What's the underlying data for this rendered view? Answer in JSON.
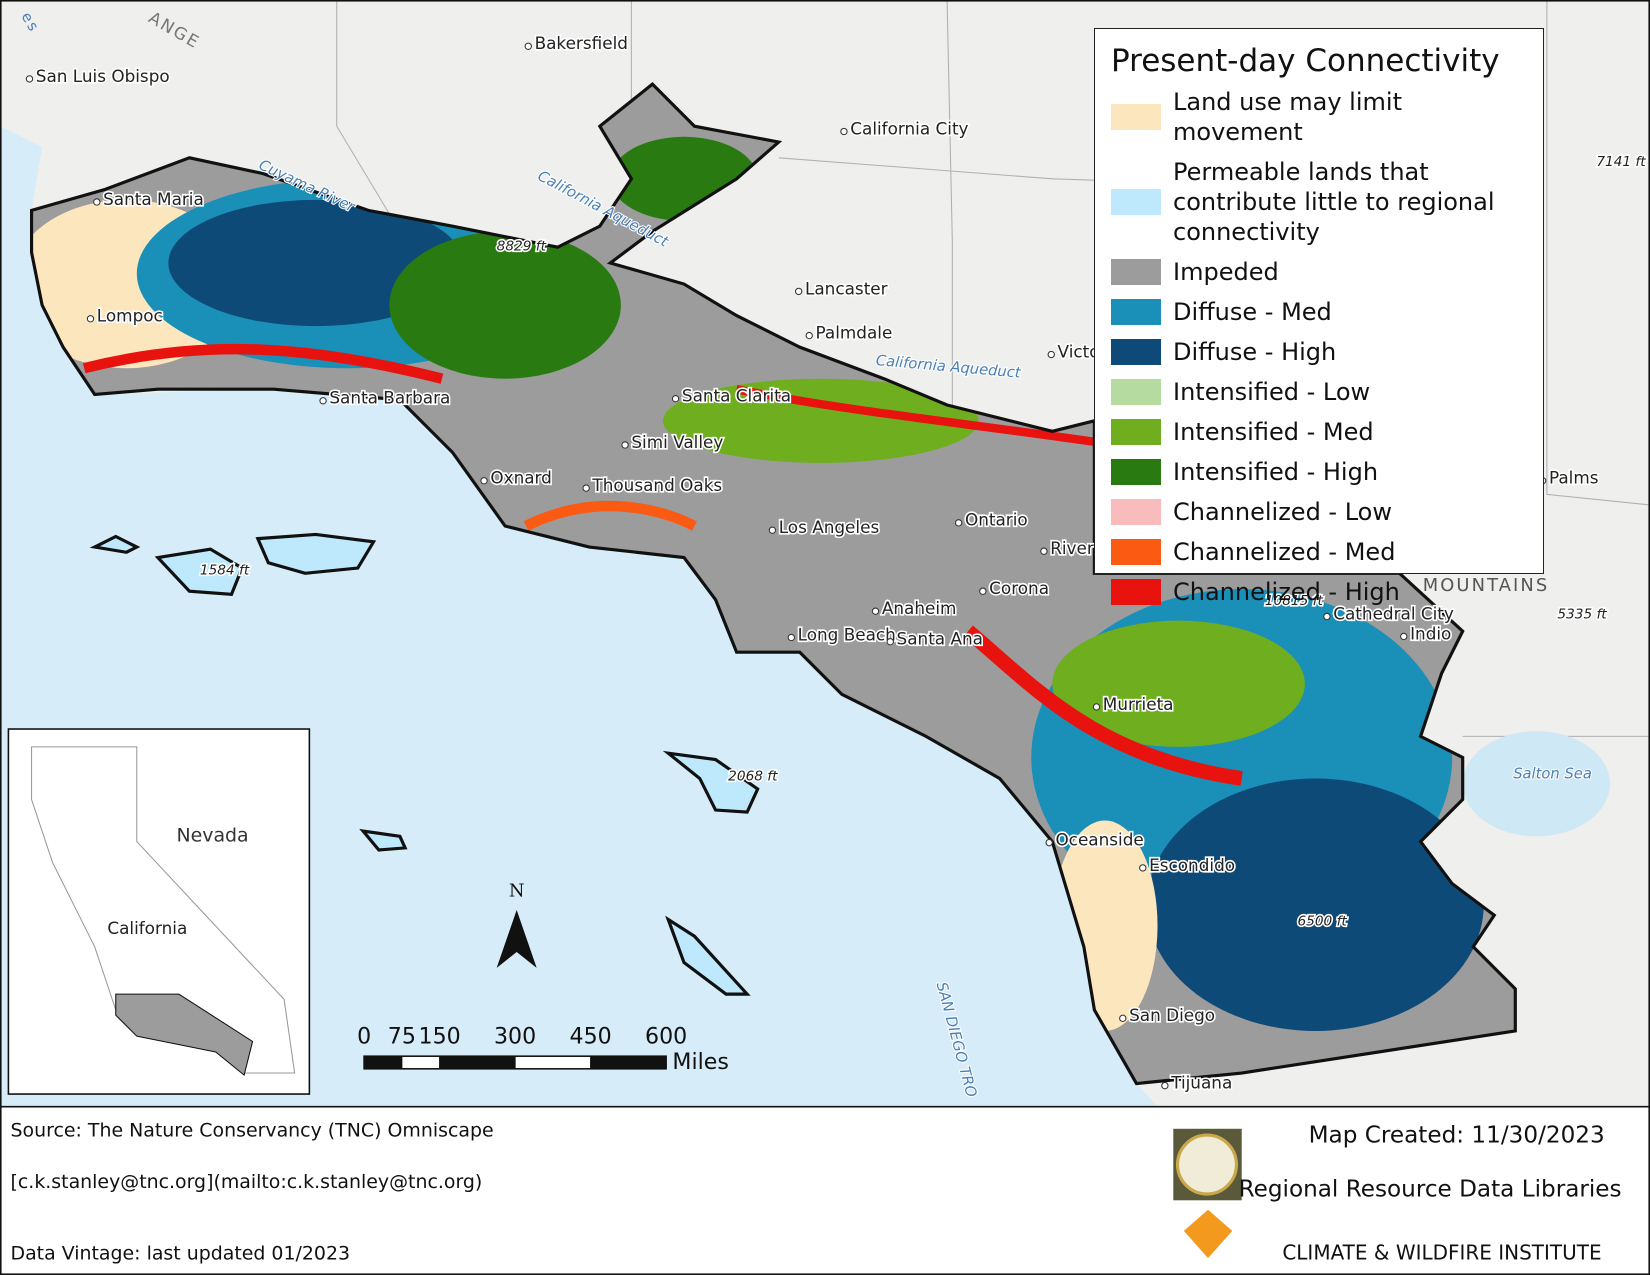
{
  "legend": {
    "title": "Present-day Connectivity",
    "items": [
      {
        "label": "Land use may limit movement",
        "color": "#fce6bd"
      },
      {
        "label": "Permeable lands that contribute little to regional connectivity",
        "color": "#bee8fb"
      },
      {
        "label": "Impeded",
        "color": "#9c9c9c"
      },
      {
        "label": "Diffuse - Med",
        "color": "#1a8fb8"
      },
      {
        "label": "Diffuse - High",
        "color": "#0e4a78"
      },
      {
        "label": "Intensified - Low",
        "color": "#b5dba0"
      },
      {
        "label": "Intensified - Med",
        "color": "#6fae1f"
      },
      {
        "label": "Intensified - High",
        "color": "#2a7a12"
      },
      {
        "label": "Channelized - Low",
        "color": "#f8bcbc"
      },
      {
        "label": "Channelized - Med",
        "color": "#fb5a12"
      },
      {
        "label": "Channelized - High",
        "color": "#e8120e"
      }
    ]
  },
  "places": [
    "Bakersfield",
    "San Luis Obispo",
    "California City",
    "Santa Maria",
    "Lompoc",
    "Lancaster",
    "Palmdale",
    "Victo",
    "Santa Barbara",
    "Santa Clarita",
    "Simi Valley",
    "Oxnard",
    "Thousand Oaks",
    "Los Angeles",
    "Ontario",
    "River",
    "Corona",
    "Anaheim",
    "Long Beach",
    "Santa Ana",
    "Murrieta",
    "Oceanside",
    "Escondido",
    "San Diego",
    "Tijuana",
    "Cathedral City",
    "Indio",
    "Palms"
  ],
  "water_labels": [
    "Cuyama River",
    "California Aqueduct",
    "California Aqueduct",
    "Salton Sea",
    "SAN DIEGO TRO"
  ],
  "terrain_labels": [
    "MOUNTAINS",
    "ANGE",
    "es"
  ],
  "elevations": [
    "8829 ft",
    "1584 ft",
    "2068 ft",
    "10815 ft",
    "6500 ft",
    "5335 ft",
    "7141 ft"
  ],
  "north_arrow": "N",
  "scale_bar": {
    "ticks": [
      0,
      75,
      150,
      300,
      450,
      600
    ],
    "unit": "Miles"
  },
  "inset": {
    "labels": [
      "Nevada",
      "California"
    ]
  },
  "footer": {
    "source": "Source:  The Nature Conservancy (TNC) Omniscape",
    "contact": "[c.k.stanley@tnc.org](mailto:c.k.stanley@tnc.org)",
    "vintage": "Data Vintage:  last updated 01/2023",
    "created": "Map Created: 11/30/2023",
    "org1": "Regional Resource Data Libraries",
    "org2": "CLIMATE & WILDFIRE INSTITUTE"
  }
}
